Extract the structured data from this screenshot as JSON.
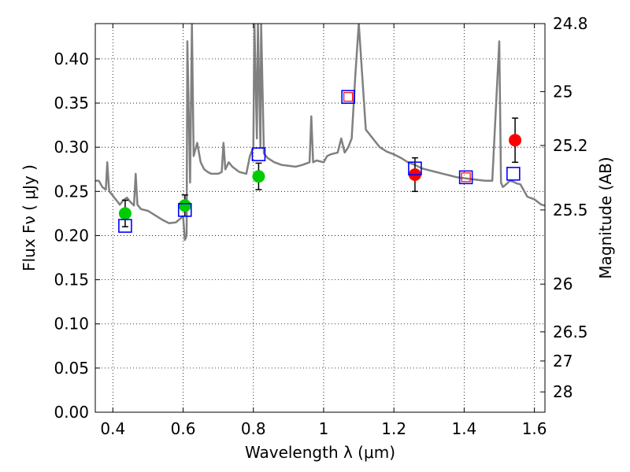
{
  "chart_data": {
    "type": "scatter",
    "xlabel": "Wavelength  λ (μm)",
    "ylabel": "Flux  Fν  ( μJy )",
    "ylabel_right": "Magnitude (AB)",
    "xlim": [
      0.35,
      1.63
    ],
    "ylim": [
      0.0,
      0.44
    ],
    "grid": true,
    "x_ticks": [
      0.4,
      0.6,
      0.8,
      1.0,
      1.2,
      1.4,
      1.6
    ],
    "x_tick_labels": [
      "0.4",
      "0.6",
      "0.8",
      "1",
      "1.2",
      "1.4",
      "1.6"
    ],
    "y_ticks": [
      0.0,
      0.05,
      0.1,
      0.15,
      0.2,
      0.25,
      0.3,
      0.35,
      0.4
    ],
    "y_tick_labels": [
      "0.00",
      "0.05",
      "0.10",
      "0.15",
      "0.20",
      "0.25",
      "0.30",
      "0.35",
      "0.40"
    ],
    "right_ticks": [
      {
        "label": "24.8",
        "flux": 0.44
      },
      {
        "label": "25",
        "flux": 0.363
      },
      {
        "label": "25.2",
        "flux": 0.302
      },
      {
        "label": "25.5",
        "flux": 0.229
      },
      {
        "label": "26",
        "flux": 0.145
      },
      {
        "label": "26.5",
        "flux": 0.091
      },
      {
        "label": "27",
        "flux": 0.058
      },
      {
        "label": "28",
        "flux": 0.023
      }
    ],
    "series": [
      {
        "marker": "line",
        "color": "#808080",
        "x": [
          0.35,
          0.36,
          0.37,
          0.38,
          0.384,
          0.388,
          0.39,
          0.4,
          0.41,
          0.42,
          0.43,
          0.44,
          0.45,
          0.46,
          0.465,
          0.47,
          0.48,
          0.5,
          0.52,
          0.54,
          0.56,
          0.58,
          0.6,
          0.605,
          0.61,
          0.612,
          0.62,
          0.625,
          0.63,
          0.64,
          0.65,
          0.66,
          0.67,
          0.68,
          0.69,
          0.7,
          0.71,
          0.715,
          0.72,
          0.73,
          0.74,
          0.75,
          0.76,
          0.78,
          0.79,
          0.8,
          0.803,
          0.81,
          0.813,
          0.82,
          0.822,
          0.83,
          0.84,
          0.86,
          0.88,
          0.9,
          0.92,
          0.94,
          0.96,
          0.965,
          0.97,
          0.98,
          1.0,
          1.01,
          1.02,
          1.04,
          1.05,
          1.06,
          1.07,
          1.08,
          1.09,
          1.1,
          1.12,
          1.14,
          1.16,
          1.18,
          1.2,
          1.22,
          1.24,
          1.26,
          1.28,
          1.3,
          1.32,
          1.34,
          1.36,
          1.38,
          1.4,
          1.42,
          1.44,
          1.46,
          1.48,
          1.5,
          1.505,
          1.51,
          1.52,
          1.53,
          1.54,
          1.55,
          1.56,
          1.58,
          1.6,
          1.62,
          1.63
        ],
        "y": [
          0.262,
          0.262,
          0.255,
          0.252,
          0.283,
          0.258,
          0.25,
          0.245,
          0.24,
          0.235,
          0.24,
          0.243,
          0.238,
          0.234,
          0.27,
          0.235,
          0.23,
          0.228,
          0.223,
          0.218,
          0.214,
          0.215,
          0.222,
          0.195,
          0.2,
          0.42,
          0.26,
          0.44,
          0.29,
          0.305,
          0.283,
          0.275,
          0.272,
          0.27,
          0.27,
          0.27,
          0.272,
          0.305,
          0.275,
          0.283,
          0.278,
          0.275,
          0.272,
          0.27,
          0.29,
          0.3,
          0.44,
          0.31,
          0.44,
          0.3,
          0.44,
          0.293,
          0.288,
          0.283,
          0.28,
          0.279,
          0.278,
          0.28,
          0.283,
          0.335,
          0.283,
          0.285,
          0.283,
          0.29,
          0.292,
          0.294,
          0.31,
          0.294,
          0.3,
          0.31,
          0.38,
          0.44,
          0.32,
          0.31,
          0.3,
          0.295,
          0.292,
          0.288,
          0.283,
          0.28,
          0.276,
          0.274,
          0.272,
          0.27,
          0.268,
          0.266,
          0.265,
          0.264,
          0.263,
          0.262,
          0.262,
          0.42,
          0.26,
          0.255,
          0.258,
          0.262,
          0.261,
          0.259,
          0.258,
          0.244,
          0.241,
          0.235,
          0.234
        ]
      },
      {
        "marker": "filled-circle",
        "color": "#00cc00",
        "x": [
          0.435,
          0.605,
          0.815
        ],
        "y": [
          0.225,
          0.234,
          0.267
        ],
        "yerr": [
          0.015,
          0.012,
          0.015
        ]
      },
      {
        "marker": "filled-circle",
        "color": "#ff0000",
        "x": [
          1.26,
          1.545
        ],
        "y": [
          0.269,
          0.308
        ],
        "yerr": [
          0.019,
          0.025
        ]
      },
      {
        "marker": "open-square",
        "color": "#0000ff",
        "x": [
          0.435,
          0.605,
          0.815,
          1.07,
          1.26,
          1.405,
          1.54
        ],
        "y": [
          0.211,
          0.229,
          0.292,
          0.357,
          0.276,
          0.266,
          0.27
        ]
      },
      {
        "marker": "open-square-small",
        "color": "#ff0000",
        "x": [
          1.07,
          1.405
        ],
        "y": [
          0.357,
          0.266
        ]
      }
    ]
  }
}
